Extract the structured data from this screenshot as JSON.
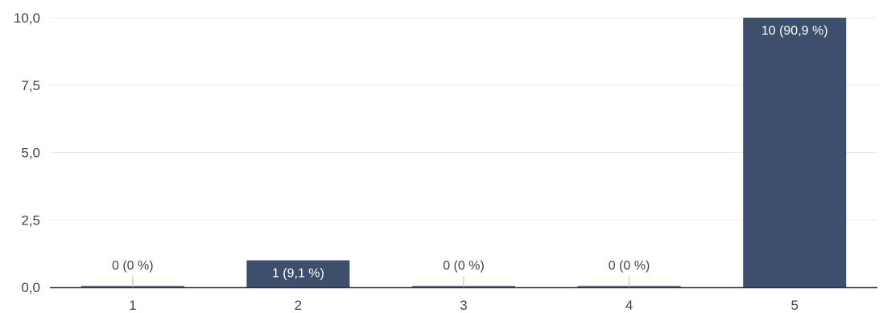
{
  "chart_data": {
    "type": "bar",
    "title": "",
    "xlabel": "",
    "ylabel": "",
    "categories": [
      "1",
      "2",
      "3",
      "4",
      "5"
    ],
    "values": [
      0,
      1,
      0,
      0,
      10
    ],
    "data_labels": [
      "0 (0 %)",
      "1 (9,1 %)",
      "0 (0 %)",
      "0 (0 %)",
      "10 (90,9 %)"
    ],
    "y_ticks": [
      "0,0",
      "2,5",
      "5,0",
      "7,5",
      "10,0"
    ],
    "ylim": [
      0,
      10
    ],
    "grid": true,
    "legend": "none",
    "colors": {
      "bar": "#3e4f6e",
      "grid": "#e8e8e8",
      "axis": "#333333",
      "label_inside": "#ffffff",
      "label_outside": "#444444",
      "connector": "#bbbbbb"
    }
  }
}
